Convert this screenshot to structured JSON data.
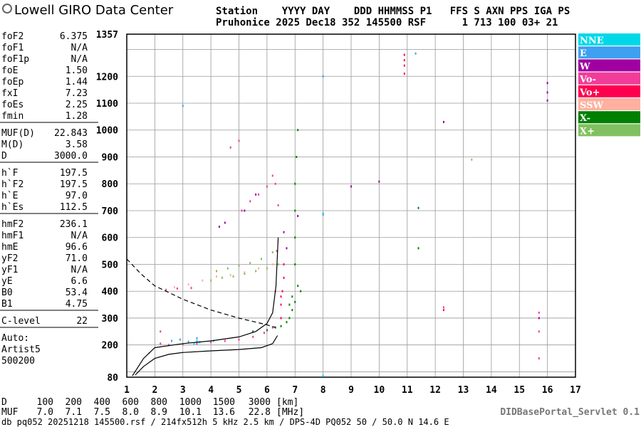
{
  "header": {
    "logo": "Lowell GIRO Data Center",
    "line1": "Station    YYYY DAY    DDD HHMMSS P1   FFS S AXN PPS IGA PS",
    "line2": "Pruhonice 2025 Dec18 352 145500 RSF      1 713 100 03+ 21"
  },
  "parameters": [
    [
      [
        "foF2",
        "6.375"
      ],
      [
        "foF1",
        "N/A"
      ],
      [
        "foF1p",
        "N/A"
      ],
      [
        "foE",
        "1.50"
      ],
      [
        "foEp",
        "1.44"
      ],
      [
        "fxI",
        "7.23"
      ],
      [
        "foEs",
        "2.25"
      ],
      [
        "fmin",
        "1.28"
      ]
    ],
    [
      [
        "MUF(D)",
        "22.843"
      ],
      [
        "M(D)",
        "3.58"
      ],
      [
        "D",
        "3000.0"
      ]
    ],
    [
      [
        "h`F",
        "197.5"
      ],
      [
        "h`F2",
        "197.5"
      ],
      [
        "h`E",
        "97.0"
      ],
      [
        "h`Es",
        "112.5"
      ]
    ],
    [
      [
        "hmF2",
        "236.1"
      ],
      [
        "hmF1",
        "N/A"
      ],
      [
        "hmE",
        "96.6"
      ],
      [
        "yF2",
        "71.0"
      ],
      [
        "yF1",
        "N/A"
      ],
      [
        "yE",
        "6.6"
      ],
      [
        "B0",
        "53.4"
      ],
      [
        "B1",
        "4.75"
      ]
    ],
    [
      [
        "C-level",
        "22"
      ]
    ]
  ],
  "auto": [
    "Auto:",
    "Artist5",
    "500200"
  ],
  "muf_table": [
    [
      "D",
      "100",
      "200",
      "400",
      "600",
      "800",
      "1000",
      "1500",
      "3000",
      "[km]"
    ],
    [
      "MUF",
      "7.0",
      "7.1",
      "7.5",
      "8.0",
      "8.9",
      "10.1",
      "13.6",
      "22.8",
      "[MHz]"
    ]
  ],
  "server": "DIDBasePortal_Servlet 0.1",
  "footer": "db pq052 20251218 145500.rsf / 214fx512h 5 kHz 2.5 km / DPS-4D PQ052 50 / 50.0 N 14.6 E",
  "chart_data": {
    "type": "scatter",
    "xlim": [
      1,
      17
    ],
    "ylim": [
      80,
      1357
    ],
    "xticks": [
      1,
      2,
      3,
      4,
      5,
      6,
      7,
      8,
      9,
      10,
      11,
      12,
      13,
      14,
      15,
      16,
      17
    ],
    "yticks": [
      80,
      200,
      300,
      400,
      500,
      600,
      700,
      800,
      900,
      1000,
      1100,
      1200,
      1357
    ],
    "minor_yticks": [
      100,
      1300
    ],
    "grid": true,
    "series": [
      {
        "name": "NNE",
        "color": "#00d8e8",
        "x": [
          3.4,
          3.5,
          3.6,
          8.0,
          8.0,
          4.1
        ],
        "y": [
          205,
          215,
          210,
          85,
          690,
          215
        ]
      },
      {
        "name": "E",
        "color": "#3da0f0",
        "x": [
          2.6,
          2.9,
          3.2,
          3.5,
          8.0,
          8.0,
          3.0,
          11.3
        ],
        "y": [
          215,
          220,
          212,
          225,
          1200,
          685,
          1090,
          1285
        ]
      },
      {
        "name": "W",
        "color": "#a000a0",
        "x": [
          4.3,
          4.5,
          5.2,
          5.6,
          6.6,
          6.7,
          9.0,
          10.0,
          12.3,
          16.0,
          16.0,
          16.0,
          15.7,
          7.1
        ],
        "y": [
          640,
          655,
          700,
          760,
          620,
          560,
          790,
          808,
          1030,
          1110,
          1140,
          1175,
          300,
          680
        ]
      },
      {
        "name": "Vo-",
        "color": "#f23c9a",
        "x": [
          2.2,
          2.5,
          3.0,
          3.5,
          4.0,
          4.5,
          5.0,
          5.5,
          5.9,
          6.2,
          6.3,
          6.35,
          6.4,
          6.3,
          6.2,
          2.4,
          2.8,
          3.3,
          5.1,
          5.4,
          5.7,
          6.0,
          4.7,
          5.0,
          2.2,
          12.3,
          15.7,
          15.7,
          15.7
        ],
        "y": [
          205,
          200,
          202,
          205,
          210,
          215,
          220,
          230,
          245,
          265,
          400,
          550,
          720,
          800,
          830,
          405,
          410,
          412,
          700,
          735,
          760,
          790,
          935,
          960,
          250,
          340,
          150,
          250,
          320
        ]
      },
      {
        "name": "Vo+",
        "color": "#ff0050",
        "x": [
          6.5,
          6.5,
          6.55,
          6.6,
          6.6,
          6.5,
          10.9,
          10.9,
          10.9,
          10.9,
          12.3
        ],
        "y": [
          300,
          350,
          400,
          450,
          500,
          380,
          1210,
          1240,
          1260,
          1280,
          330
        ]
      },
      {
        "name": "SSW",
        "color": "#ffb0a0",
        "x": [
          2.7,
          3.2,
          3.7,
          4.2,
          4.7,
          5.2,
          5.7,
          6.2,
          1.8
        ],
        "y": [
          415,
          425,
          440,
          455,
          460,
          470,
          485,
          500,
          170
        ]
      },
      {
        "name": "X-",
        "color": "#008000",
        "x": [
          6.5,
          6.7,
          6.8,
          6.9,
          7.0,
          7.0,
          7.0,
          7.0,
          7.0,
          7.05,
          7.1,
          7.1,
          6.9,
          6.8,
          7.2,
          11.4,
          11.4,
          5.5,
          6.0,
          6.3
        ],
        "y": [
          270,
          285,
          300,
          330,
          360,
          500,
          600,
          700,
          800,
          900,
          1000,
          420,
          380,
          350,
          400,
          710,
          560,
          250,
          255,
          265
        ]
      },
      {
        "name": "X+",
        "color": "#80c060",
        "x": [
          4.0,
          4.4,
          4.8,
          5.2,
          5.6,
          6.0,
          6.4,
          4.2,
          4.6,
          5.0,
          5.4,
          5.8,
          6.2,
          13.3
        ],
        "y": [
          440,
          450,
          455,
          465,
          475,
          485,
          500,
          475,
          485,
          495,
          505,
          520,
          545,
          890
        ]
      }
    ],
    "profiles": [
      {
        "style": "solid",
        "color": "#000000",
        "x": [
          1.3,
          1.6,
          2.0,
          2.5,
          3.0,
          4.0,
          5.0,
          5.8,
          6.2,
          6.375
        ],
        "y": [
          88,
          120,
          150,
          165,
          172,
          178,
          183,
          190,
          205,
          235
        ]
      },
      {
        "style": "solid",
        "color": "#000000",
        "x": [
          1.2,
          1.6,
          2.0,
          3.0,
          4.0,
          5.0,
          5.6,
          6.0,
          6.2,
          6.32,
          6.4
        ],
        "y": [
          85,
          150,
          190,
          205,
          215,
          230,
          250,
          280,
          320,
          420,
          600
        ]
      },
      {
        "style": "dashed",
        "color": "#000000",
        "x": [
          1.0,
          1.5,
          2.0,
          3.0,
          4.0,
          5.0,
          6.0,
          6.3
        ],
        "y": [
          520,
          465,
          420,
          370,
          330,
          300,
          275,
          265
        ]
      }
    ]
  }
}
